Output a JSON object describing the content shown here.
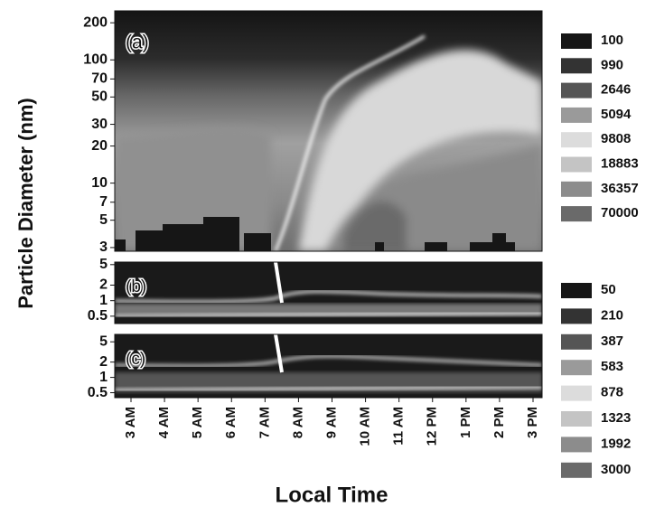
{
  "figure": {
    "ylabel": "Particle Diameter (nm)",
    "xlabel": "Local Time"
  },
  "chart_data": [
    {
      "type": "contour",
      "panel_label": "(a)",
      "log_y": true,
      "ylim": [
        2.8,
        250
      ],
      "yticks": [
        3,
        5,
        7,
        10,
        20,
        30,
        50,
        70,
        100,
        200
      ],
      "legend": {
        "levels": [
          100,
          990,
          2646,
          5094,
          9808,
          18883,
          36357,
          70000
        ],
        "colors": [
          "#161616",
          "#333333",
          "#555555",
          "#9a9a9a",
          "#dcdcdc",
          "#c4c4c4",
          "#8c8c8c",
          "#6a6a6a"
        ]
      }
    },
    {
      "type": "contour",
      "panel_label": "(b)",
      "log_y": true,
      "ylim": [
        0.36,
        5.6
      ],
      "yticks": [
        0.5,
        1,
        2,
        5
      ],
      "legend": {
        "levels": [
          50,
          210,
          387,
          583,
          878,
          1323,
          1992,
          3000
        ],
        "colors": [
          "#161616",
          "#333333",
          "#555555",
          "#9a9a9a",
          "#dcdcdc",
          "#c4c4c4",
          "#8c8c8c",
          "#6a6a6a"
        ]
      }
    },
    {
      "type": "contour",
      "panel_label": "(c)",
      "log_y": true,
      "ylim": [
        0.4,
        7
      ],
      "yticks": [
        0.5,
        1,
        2,
        5
      ],
      "categories": [
        "3 AM",
        "4 AM",
        "5 AM",
        "6 AM",
        "7 AM",
        "8 AM",
        "9 AM",
        "10 AM",
        "11 AM",
        "12 PM",
        "1 PM",
        "2 PM",
        "3 PM"
      ]
    }
  ]
}
